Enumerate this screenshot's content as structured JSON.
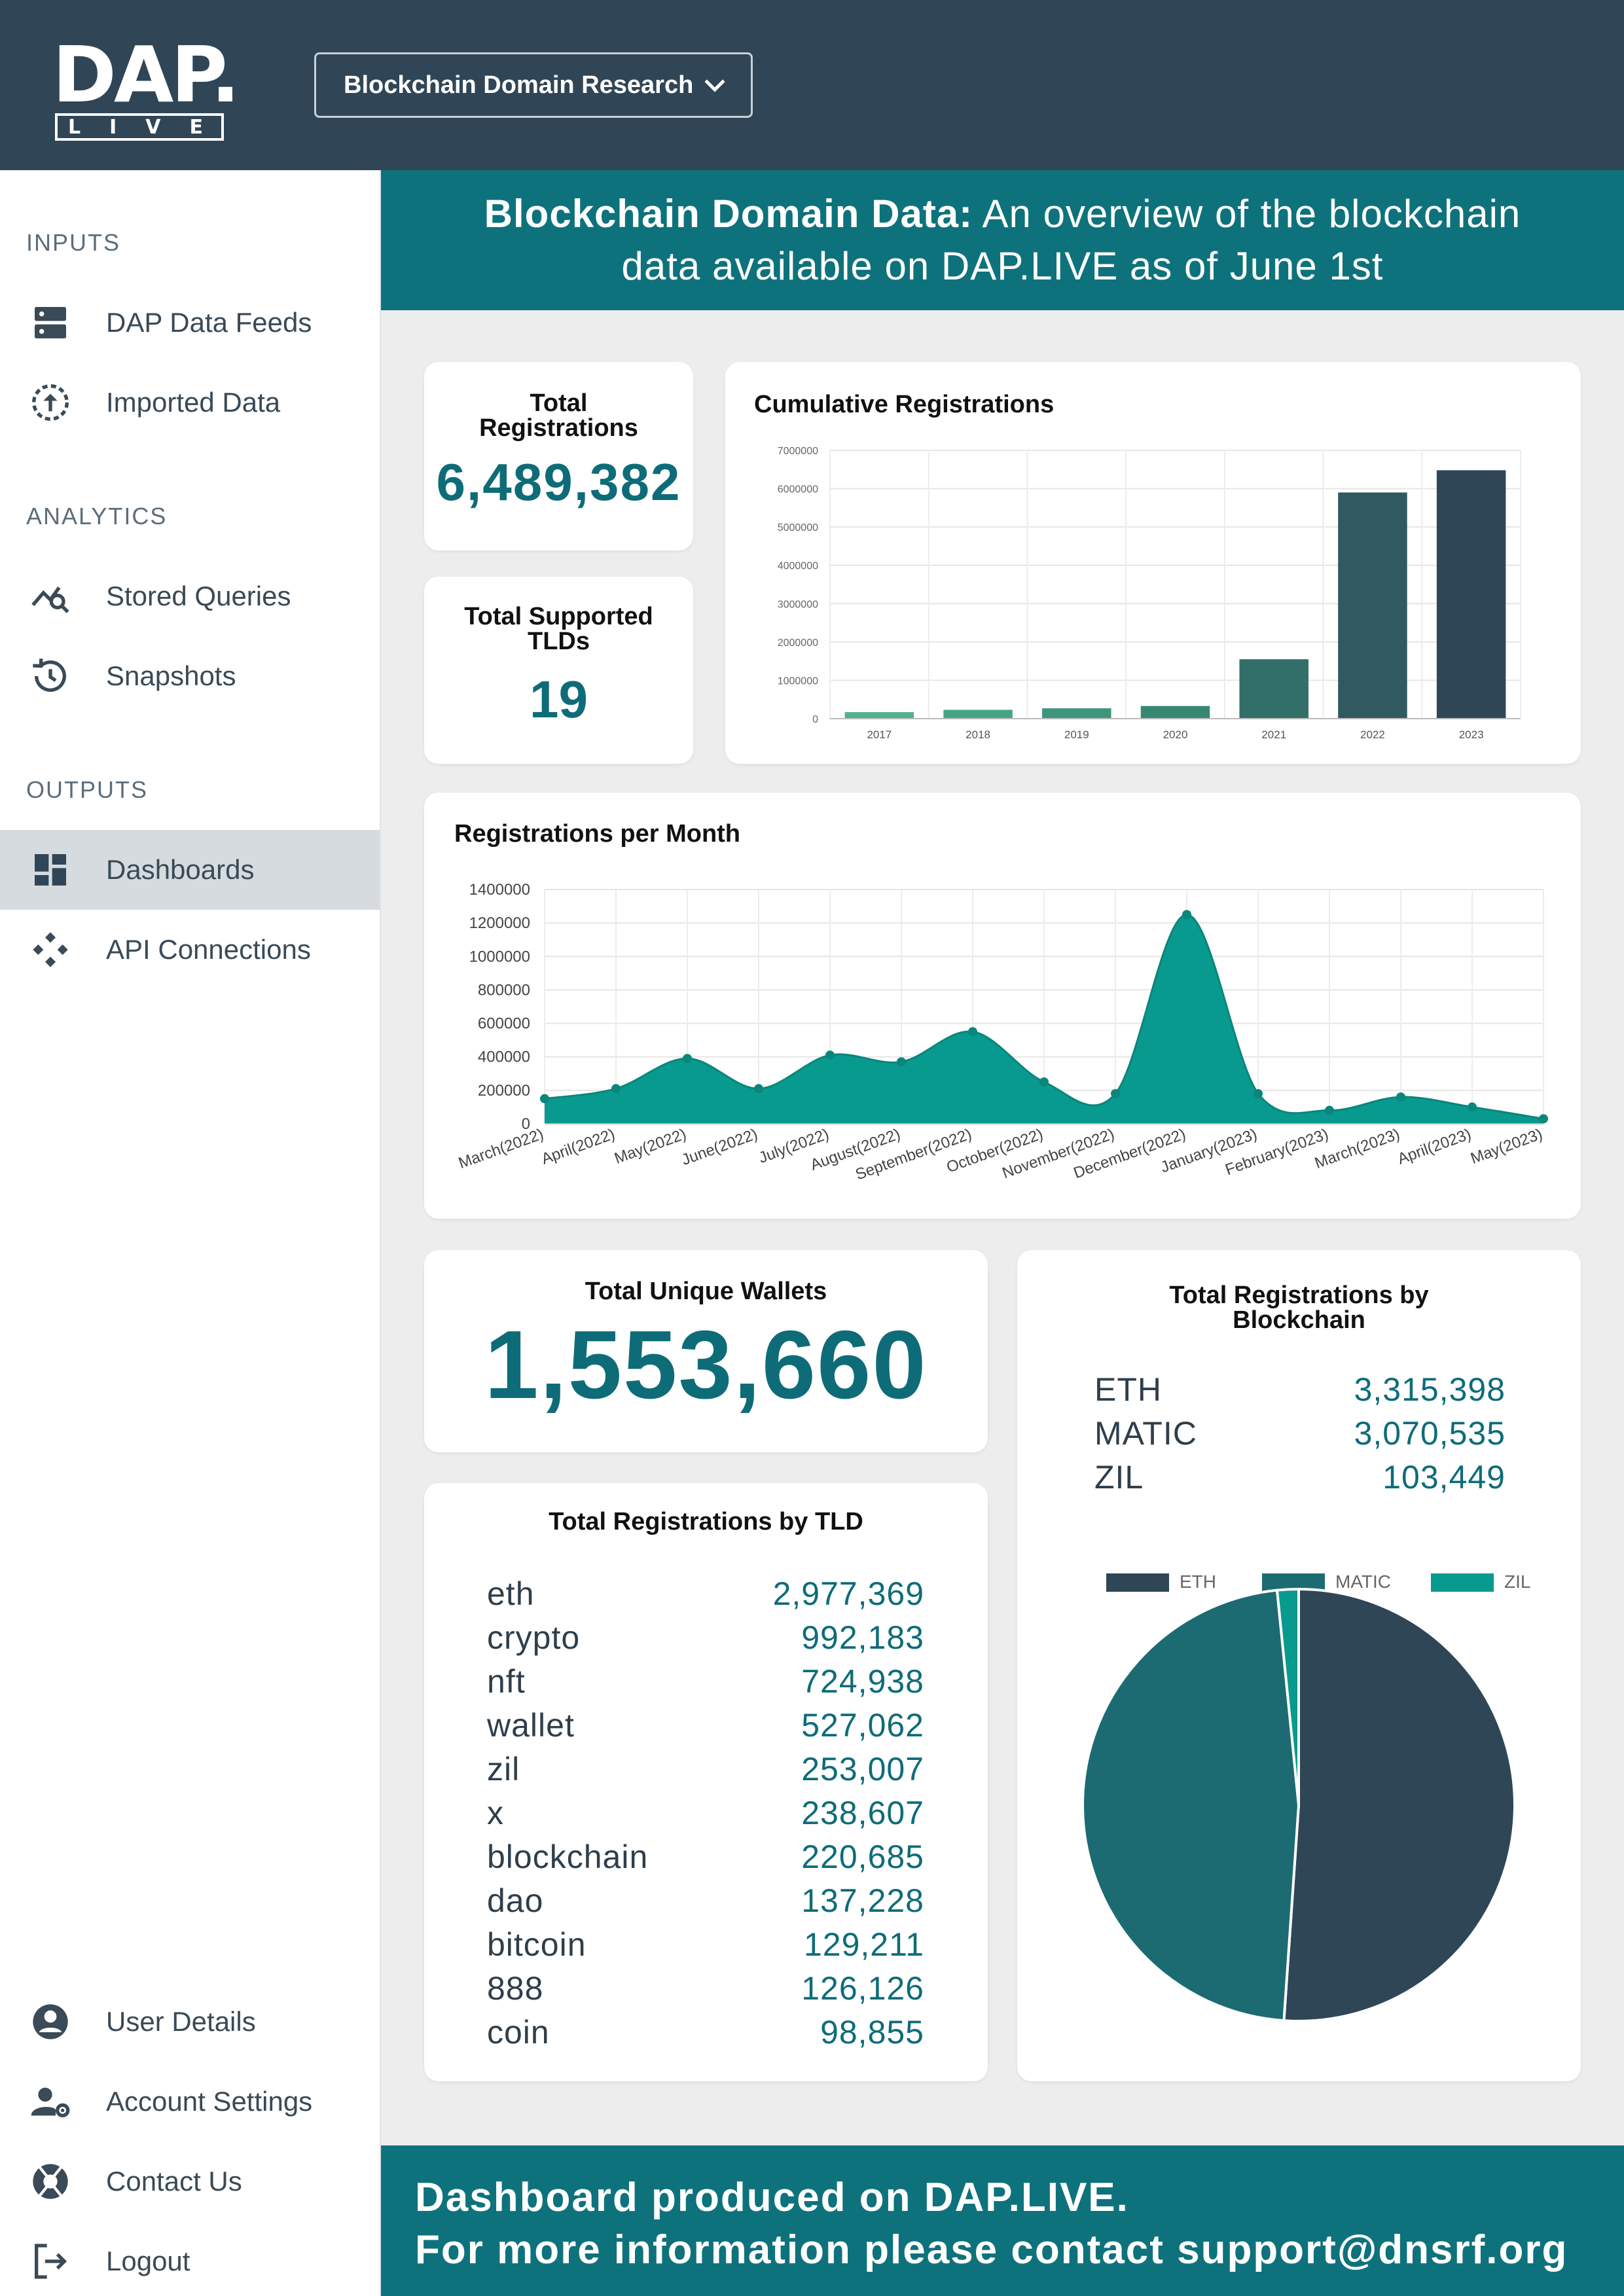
{
  "header": {
    "logo_top": "DAP.",
    "logo_bottom": [
      "L",
      "I",
      "V",
      "E"
    ],
    "project_select": "Blockchain Domain Research"
  },
  "sidebar": {
    "sections": [
      "INPUTS",
      "ANALYTICS",
      "OUTPUTS"
    ],
    "items": [
      {
        "label": "DAP Data Feeds",
        "icon": "server-icon"
      },
      {
        "label": "Imported Data",
        "icon": "upload-circle-icon"
      },
      {
        "label": "Stored Queries",
        "icon": "query-stats-icon"
      },
      {
        "label": "Snapshots",
        "icon": "history-icon"
      },
      {
        "label": "Dashboards",
        "icon": "dashboard-icon",
        "active": true
      },
      {
        "label": "API Connections",
        "icon": "api-icon"
      }
    ],
    "bottom_items": [
      {
        "label": "User Details",
        "icon": "account-circle-icon"
      },
      {
        "label": "Account Settings",
        "icon": "manage-accounts-icon"
      },
      {
        "label": "Contact Us",
        "icon": "support-icon"
      },
      {
        "label": "Logout",
        "icon": "logout-icon"
      }
    ]
  },
  "hero": {
    "title_bold": "Blockchain Domain Data:",
    "title_rest": " An overview of the blockchain",
    "line2": "data available on DAP.LIVE as of June 1st"
  },
  "kpis": {
    "total_registrations": {
      "title_l1": "Total",
      "title_l2": "Registrations",
      "value": "6,489,382"
    },
    "total_tlds": {
      "title_l1": "Total Supported",
      "title_l2": "TLDs",
      "value": "19"
    },
    "unique_wallets": {
      "title": "Total Unique Wallets",
      "value": "1,553,660"
    }
  },
  "tld_card": {
    "title": "Total Registrations by TLD",
    "rows": [
      {
        "k": "eth",
        "v": "2,977,369"
      },
      {
        "k": "crypto",
        "v": "992,183"
      },
      {
        "k": "nft",
        "v": "724,938"
      },
      {
        "k": "wallet",
        "v": "527,062"
      },
      {
        "k": "zil",
        "v": "253,007"
      },
      {
        "k": "x",
        "v": "238,607"
      },
      {
        "k": "blockchain",
        "v": "220,685"
      },
      {
        "k": "dao",
        "v": "137,228"
      },
      {
        "k": "bitcoin",
        "v": "129,211"
      },
      {
        "k": "888",
        "v": "126,126"
      },
      {
        "k": "coin",
        "v": "98,855"
      }
    ]
  },
  "blockchain_card": {
    "title_l1": "Total Registrations by",
    "title_l2": "Blockchain",
    "rows": [
      {
        "k": "ETH",
        "v": "3,315,398"
      },
      {
        "k": "MATIC",
        "v": "3,070,535"
      },
      {
        "k": "ZIL",
        "v": "103,449"
      }
    ]
  },
  "footer": {
    "line1": "Dashboard produced on DAP.LIVE.",
    "line2": "For more information please contact support@dnsrf.org"
  },
  "chart_data": [
    {
      "type": "bar",
      "title": "Cumulative Registrations",
      "categories": [
        "2017",
        "2018",
        "2019",
        "2020",
        "2021",
        "2022",
        "2023"
      ],
      "values": [
        170000,
        230000,
        270000,
        330000,
        1550000,
        5900000,
        6480000
      ],
      "ylim": [
        0,
        7000000
      ],
      "yticks": [
        0,
        1000000,
        2000000,
        3000000,
        4000000,
        5000000,
        6000000,
        7000000
      ],
      "colors": [
        "#4fb38b",
        "#45a583",
        "#3d967b",
        "#368872",
        "#336f69",
        "#315a60",
        "#2f4657"
      ],
      "grid": true
    },
    {
      "type": "area",
      "title": "Registrations per Month",
      "categories": [
        "March(2022)",
        "April(2022)",
        "May(2022)",
        "June(2022)",
        "July(2022)",
        "August(2022)",
        "September(2022)",
        "October(2022)",
        "November(2022)",
        "December(2022)",
        "January(2023)",
        "February(2023)",
        "March(2023)",
        "April(2023)",
        "May(2023)"
      ],
      "values": [
        150000,
        210000,
        390000,
        210000,
        410000,
        370000,
        550000,
        250000,
        180000,
        1250000,
        180000,
        80000,
        160000,
        100000,
        30000
      ],
      "ylim": [
        0,
        1400000
      ],
      "yticks": [
        0,
        200000,
        400000,
        600000,
        800000,
        1000000,
        1200000,
        1400000
      ],
      "color": "#089a8e",
      "grid": true
    },
    {
      "type": "pie",
      "categories": [
        "ETH",
        "MATIC",
        "ZIL"
      ],
      "values": [
        3315398,
        3070535,
        103449
      ],
      "colors": [
        "#2f4657",
        "#1c6b72",
        "#089a8e"
      ],
      "legend": "top"
    }
  ]
}
